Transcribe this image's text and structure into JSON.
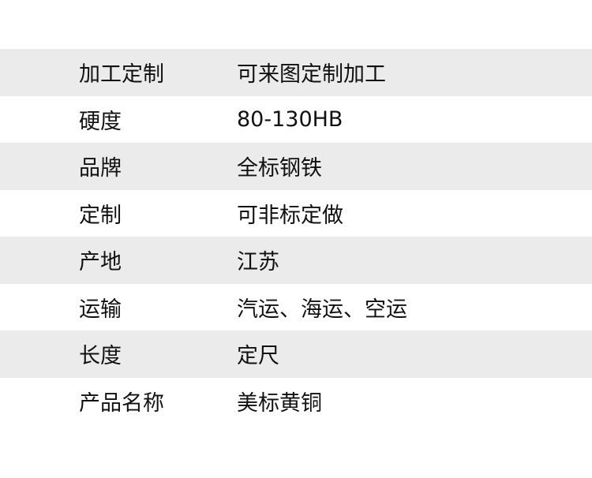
{
  "spec_table": {
    "rows": [
      {
        "label": "加工定制",
        "value": "可来图定制加工"
      },
      {
        "label": "硬度",
        "value": "80-130HB"
      },
      {
        "label": "品牌",
        "value": "全标钢铁"
      },
      {
        "label": "定制",
        "value": "可非标定做"
      },
      {
        "label": "产地",
        "value": "江苏"
      },
      {
        "label": "运输",
        "value": "汽运、海运、空运"
      },
      {
        "label": "长度",
        "value": "定尺"
      },
      {
        "label": "产品名称",
        "value": "美标黄铜"
      }
    ]
  },
  "colors": {
    "stripe": "#ebebeb",
    "background": "#ffffff",
    "text": "#111111"
  }
}
